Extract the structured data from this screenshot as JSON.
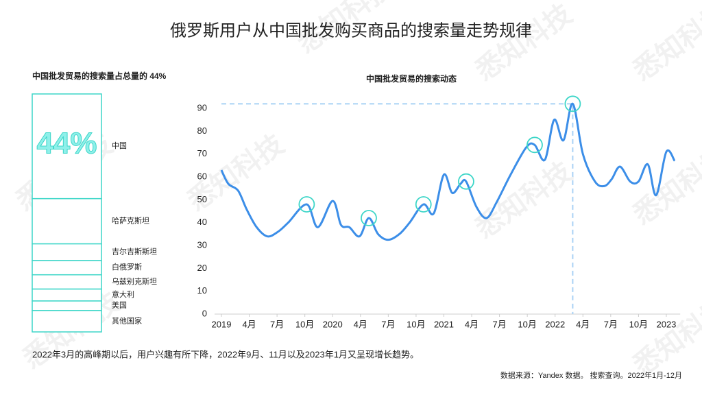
{
  "title": "俄罗斯用户从中国批发购买商品的搜索量走势规律",
  "watermark": "悉知科技",
  "footnote": "2022年3月的高峰期以后，用户兴趣有所下降，2022年9月、11月以及2023年1月又呈现增长趋势。",
  "source": "数据来源：Yandex 数据。 搜索查询。2022年1月-12月",
  "chart_data": [
    {
      "type": "stack",
      "title": "中国批发贸易的搜索量占总量的 44%",
      "categories": [
        "中国",
        "哈萨克斯坦",
        "吉尔吉斯斯坦",
        "白俄罗斯",
        "乌兹别克斯坦",
        "意大利",
        "美国",
        "其他国家"
      ],
      "values": [
        44,
        19,
        7,
        6,
        6,
        5,
        4,
        9
      ],
      "value_labels": [
        "44%",
        null,
        null,
        null,
        null,
        null,
        null,
        null
      ],
      "color": "#3dd6c8"
    },
    {
      "type": "line",
      "title": "中国批发贸易的搜索动态",
      "x": [
        0,
        0.74,
        1.8,
        2.7,
        3.8,
        4.95,
        6.1,
        7.2,
        9.2,
        10.4,
        12,
        12.9,
        13.8,
        14.9,
        15.9,
        16.9,
        18,
        19.2,
        20.3,
        21.8,
        22.9,
        24,
        24.9,
        25.8,
        26.4,
        27.5,
        28.6,
        29.7,
        31.2,
        32.9,
        33.8,
        34.9,
        35.9,
        36.9,
        37.9,
        39,
        40.3,
        41.3,
        42.1,
        43,
        44.1,
        45,
        46,
        46.9,
        48,
        48.9
      ],
      "series": [
        {
          "name": "中国批发贸易",
          "color": "#3c8ee8",
          "values": [
            63,
            57,
            54,
            46,
            38,
            34,
            36,
            40,
            48,
            38,
            49.5,
            39,
            38,
            34,
            42,
            35,
            32.5,
            35,
            40,
            48,
            44,
            61,
            53,
            57,
            58,
            47,
            42,
            49,
            61,
            73,
            74,
            67.5,
            85,
            76,
            92,
            70,
            58,
            56,
            59,
            64.5,
            58,
            58,
            65.5,
            52,
            71,
            67
          ]
        }
      ],
      "highlights": [
        8,
        14,
        19,
        24,
        30,
        34
      ],
      "highlight_color": "#3dd6c8",
      "xlim": [
        0,
        49.5
      ],
      "xticks": [
        {
          "value": 0,
          "label": "2019"
        },
        {
          "value": 3,
          "label": "4月"
        },
        {
          "value": 6,
          "label": "7月"
        },
        {
          "value": 9,
          "label": "10月"
        },
        {
          "value": 12,
          "label": "2020"
        },
        {
          "value": 15,
          "label": "4月"
        },
        {
          "value": 18,
          "label": "7月"
        },
        {
          "value": 21,
          "label": "10月"
        },
        {
          "value": 24,
          "label": "2021"
        },
        {
          "value": 27,
          "label": "4月"
        },
        {
          "value": 30,
          "label": "7月"
        },
        {
          "value": 33,
          "label": "10月"
        },
        {
          "value": 36,
          "label": "2022"
        },
        {
          "value": 39,
          "label": "4月"
        },
        {
          "value": 42,
          "label": "7月"
        },
        {
          "value": 45,
          "label": "10月"
        },
        {
          "value": 48,
          "label": "2023"
        }
      ],
      "ylim": [
        0,
        95
      ],
      "yticks": [
        0,
        10,
        20,
        30,
        40,
        50,
        60,
        70,
        80,
        90
      ]
    }
  ]
}
